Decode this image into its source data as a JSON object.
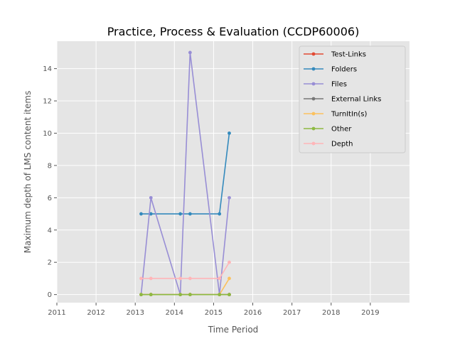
{
  "chart_data": {
    "type": "line",
    "title": "Practice, Process & Evaluation (CCDP60006)",
    "xlabel": "Time Period",
    "ylabel": "Maximum depth of LMS content items",
    "xlim": [
      2011,
      2020
    ],
    "ylim": [
      -0.5,
      15.7
    ],
    "xticks": [
      "2011",
      "2012",
      "2013",
      "2014",
      "2015",
      "2016",
      "2017",
      "2018",
      "2019"
    ],
    "yticks": [
      "0",
      "2",
      "4",
      "6",
      "8",
      "10",
      "12",
      "14"
    ],
    "grid": true,
    "legend_position": "top-right",
    "x": [
      2013.15,
      2013.4,
      2014.15,
      2014.4,
      2015.15,
      2015.4
    ],
    "series": [
      {
        "name": "Test-Links",
        "color": "#e24a33",
        "values": [
          0,
          0,
          0,
          0,
          0,
          0
        ]
      },
      {
        "name": "Folders",
        "color": "#348abd",
        "values": [
          5,
          5,
          5,
          5,
          5,
          10
        ]
      },
      {
        "name": "Files",
        "color": "#988ed5",
        "values": [
          0,
          6,
          0,
          15,
          0,
          6
        ]
      },
      {
        "name": "External Links",
        "color": "#777777",
        "values": [
          0,
          0,
          0,
          0,
          0,
          0
        ]
      },
      {
        "name": "TurnItIn(s)",
        "color": "#fbc15e",
        "values": [
          0,
          0,
          0,
          0,
          0,
          1
        ]
      },
      {
        "name": "Other",
        "color": "#8eba42",
        "values": [
          0,
          0,
          0,
          0,
          0,
          0
        ]
      },
      {
        "name": "Depth",
        "color": "#ffb5b8",
        "values": [
          1,
          1,
          1,
          1,
          1,
          2
        ]
      }
    ]
  }
}
